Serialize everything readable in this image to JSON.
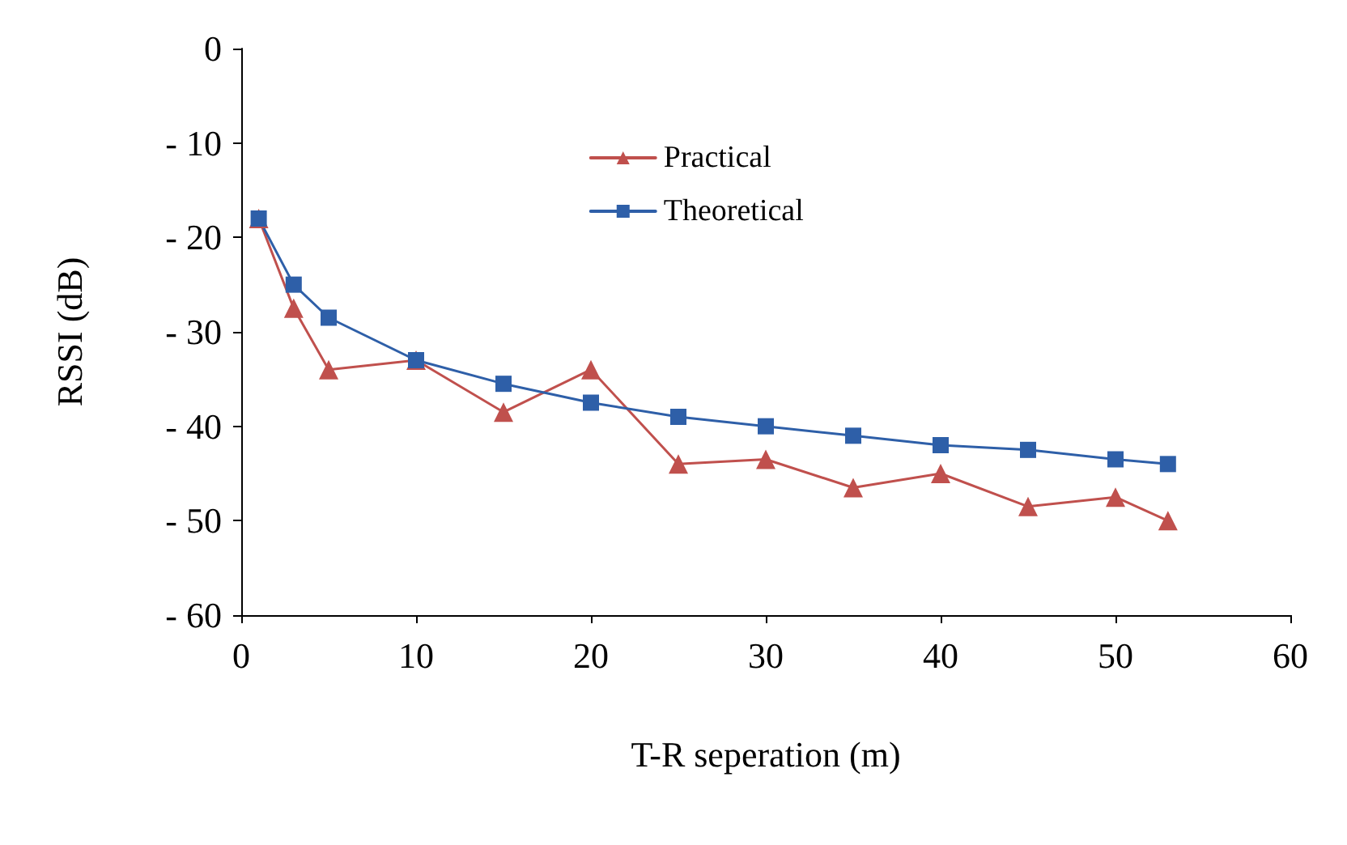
{
  "chart_data": {
    "type": "line",
    "xlabel": "T-R seperation (m)",
    "ylabel": "RSSI (dB)",
    "x": [
      1,
      3,
      5,
      10,
      15,
      20,
      25,
      30,
      35,
      40,
      45,
      50,
      53
    ],
    "series": [
      {
        "name": "Practical",
        "color": "#c0504d",
        "marker": "triangle",
        "values": [
          -18,
          -27.5,
          -34,
          -33,
          -38.5,
          -34,
          -44,
          -43.5,
          -46.5,
          -45,
          -48.5,
          -47.5,
          -50
        ]
      },
      {
        "name": "Theoretical",
        "color": "#2e5fa8",
        "marker": "square",
        "values": [
          -18,
          -25,
          -28.5,
          -33,
          -35.5,
          -37.5,
          -39,
          -40,
          -41,
          -42,
          -42.5,
          -43.5,
          -44
        ]
      }
    ],
    "xlim": [
      0,
      60
    ],
    "xticks": [
      0,
      10,
      20,
      30,
      40,
      50,
      60
    ],
    "ylim": [
      -60,
      0
    ],
    "yticks": [
      -60,
      -50,
      -40,
      -30,
      -20,
      -10,
      0
    ],
    "grid": false,
    "legend": "top",
    "line_style": "solid"
  }
}
